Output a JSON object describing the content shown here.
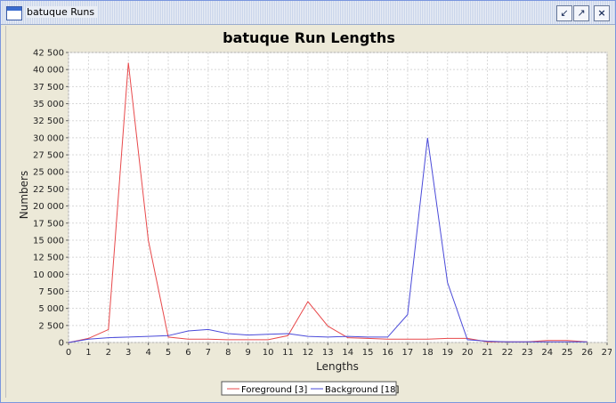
{
  "window": {
    "title": "batuque Runs",
    "buttons": {
      "minimize": "↙",
      "maximize": "↗",
      "close": "×"
    }
  },
  "colors": {
    "foreground": "#e8494b",
    "background": "#4a4ad9",
    "grid": "#d8d8d8"
  },
  "chart_data": {
    "type": "line",
    "title": "batuque Run Lengths",
    "xlabel": "Lengths",
    "ylabel": "Numbers",
    "xlim": [
      0,
      27
    ],
    "ylim": [
      0,
      42500
    ],
    "xticks": [
      "0",
      "1",
      "2",
      "3",
      "4",
      "5",
      "6",
      "7",
      "8",
      "9",
      "10",
      "11",
      "12",
      "13",
      "14",
      "15",
      "16",
      "17",
      "18",
      "19",
      "20",
      "21",
      "22",
      "23",
      "24",
      "25",
      "26",
      "27"
    ],
    "yticks": [
      "0",
      "2 500",
      "5 000",
      "7 500",
      "10 000",
      "12 500",
      "15 000",
      "17 500",
      "20 000",
      "22 500",
      "25 000",
      "27 500",
      "30 000",
      "32 500",
      "35 000",
      "37 500",
      "40 000",
      "42 500"
    ],
    "grid": true,
    "legend_position": "bottom",
    "series": [
      {
        "name": "Foreground [3]",
        "x": [
          0,
          1,
          2,
          3,
          4,
          5,
          6,
          7,
          8,
          9,
          10,
          11,
          12,
          13,
          14,
          15,
          16,
          17,
          18,
          19,
          20,
          21,
          22,
          23,
          24,
          25,
          26
        ],
        "y": [
          0,
          600,
          1900,
          41000,
          15000,
          800,
          500,
          500,
          400,
          400,
          400,
          1000,
          6000,
          2400,
          700,
          600,
          500,
          500,
          500,
          600,
          600,
          100,
          100,
          100,
          300,
          300,
          100
        ]
      },
      {
        "name": "Background [18]",
        "x": [
          0,
          1,
          2,
          3,
          4,
          5,
          6,
          7,
          8,
          9,
          10,
          11,
          12,
          13,
          14,
          15,
          16,
          17,
          18,
          19,
          20,
          21,
          22,
          23,
          24,
          25,
          26
        ],
        "y": [
          0,
          500,
          700,
          800,
          900,
          1000,
          1700,
          1900,
          1300,
          1100,
          1200,
          1300,
          900,
          800,
          900,
          800,
          800,
          4100,
          30000,
          8800,
          400,
          200,
          100,
          100,
          100,
          100,
          100
        ]
      }
    ]
  }
}
